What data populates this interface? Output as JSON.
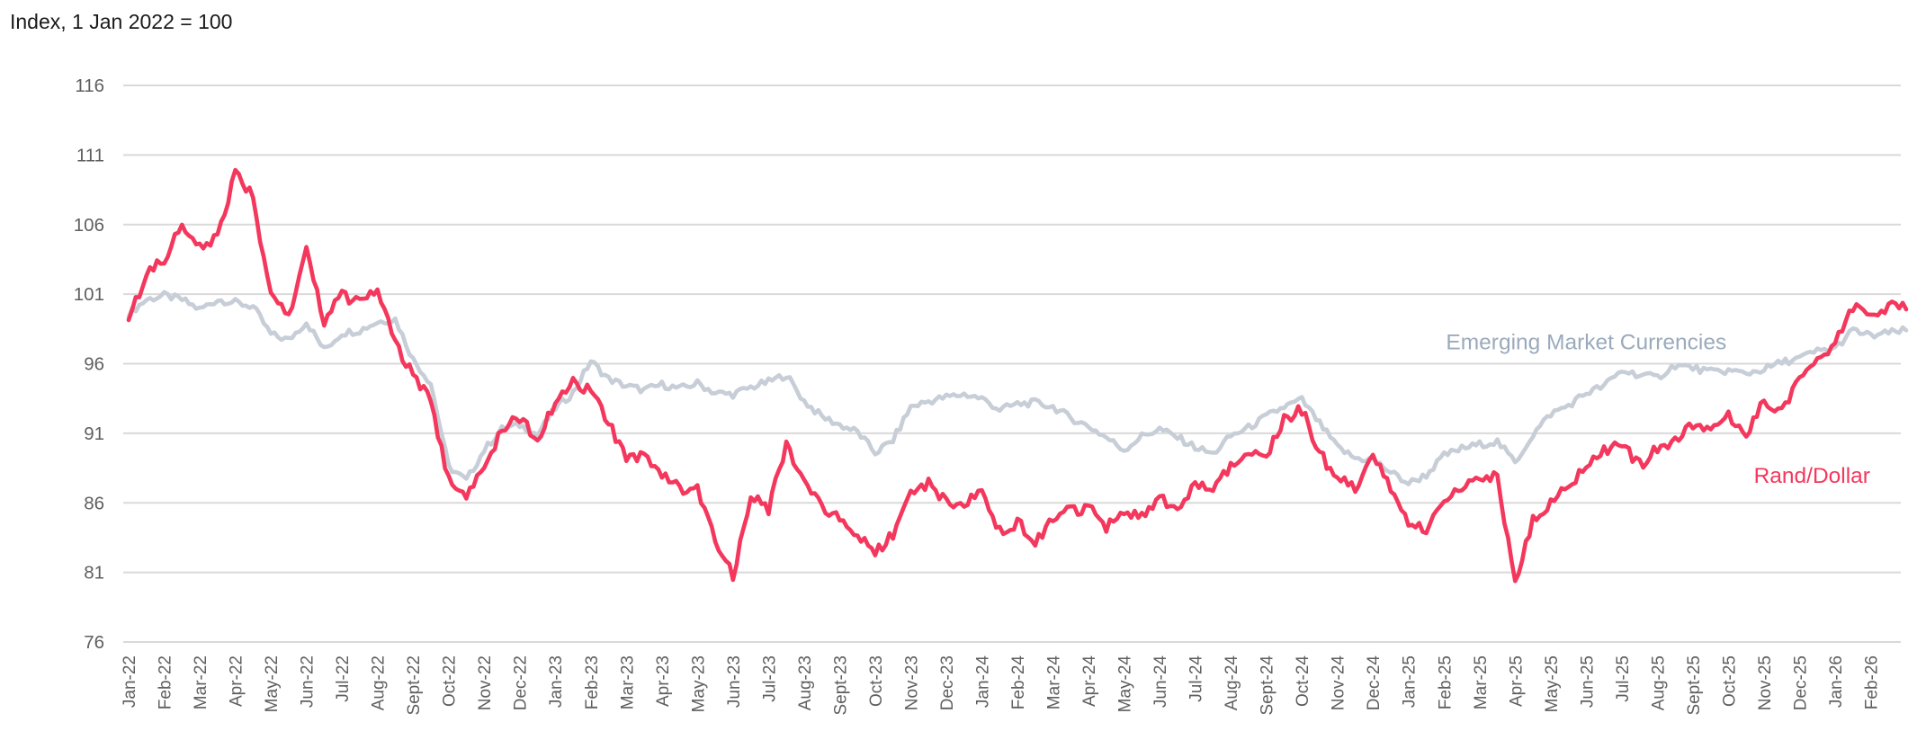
{
  "title": "Index, 1 Jan 2022 = 100",
  "chart_data": {
    "type": "line",
    "title": "Index, 1 Jan 2022 = 100",
    "grid": "horizontal",
    "ylim": [
      76,
      116
    ],
    "y_ticks": [
      76,
      81,
      86,
      91,
      96,
      101,
      106,
      111,
      116
    ],
    "points_per_month": 2,
    "x_tick_labels": [
      "Jan-22",
      "Feb-22",
      "Mar-22",
      "Apr-22",
      "May-22",
      "Jun-22",
      "Jul-22",
      "Aug-22",
      "Sept-22",
      "Oct-22",
      "Nov-22",
      "Dec-22",
      "Jan-23",
      "Feb-23",
      "Mar-23",
      "Apr-23",
      "May-23",
      "Jun-23",
      "Jul-23",
      "Aug-23",
      "Sept-23",
      "Oct-23",
      "Nov-23",
      "Dec-23",
      "Jan-24",
      "Feb-24",
      "Mar-24",
      "Apr-24",
      "May-24",
      "Jun-24",
      "Jul-24",
      "Aug-24",
      "Sept-24",
      "Oct-24",
      "Nov-24",
      "Dec-24",
      "Jan-25",
      "Feb-25",
      "Mar-25",
      "Apr-25",
      "May-25",
      "Jun-25",
      "Jul-25",
      "Aug-25",
      "Sept-25",
      "Oct-25",
      "Nov-25",
      "Dec-25",
      "Jan-26",
      "Feb-26"
    ],
    "series": [
      {
        "id": "emerging-market-currencies",
        "name": "Emerging Market Currencies",
        "color": "#C7CED7",
        "values": [
          99.6,
          100.6,
          100.9,
          100.6,
          99.9,
          100.6,
          100.4,
          100.1,
          98.1,
          97.7,
          99.0,
          97.0,
          98.2,
          98.4,
          99.0,
          99.2,
          96.3,
          94.6,
          88.6,
          87.6,
          89.8,
          91.3,
          91.6,
          90.9,
          92.8,
          93.9,
          96.2,
          94.9,
          94.4,
          94.1,
          94.5,
          94.2,
          94.6,
          93.9,
          93.8,
          94.3,
          94.7,
          95.2,
          93.3,
          92.2,
          91.6,
          91.1,
          89.6,
          90.5,
          92.9,
          93.3,
          93.6,
          93.8,
          93.5,
          92.7,
          93.1,
          93.2,
          92.9,
          92.1,
          91.5,
          90.7,
          89.8,
          90.8,
          91.3,
          90.7,
          90.0,
          89.5,
          90.8,
          91.4,
          92.2,
          92.9,
          93.4,
          91.7,
          90.0,
          89.2,
          89.1,
          88.2,
          87.4,
          88.0,
          89.4,
          89.9,
          90.2,
          90.4,
          88.9,
          90.9,
          92.4,
          93.0,
          93.9,
          94.4,
          95.5,
          95.2,
          95.0,
          95.9,
          95.7,
          95.4,
          95.5,
          95.3,
          95.6,
          96.1,
          96.4,
          96.9,
          97.1,
          98.4,
          98.0,
          98.2,
          98.4
        ]
      },
      {
        "id": "rand-dollar",
        "name": "Rand/Dollar",
        "color": "#F4375C",
        "values": [
          99.5,
          102.3,
          103.6,
          106.0,
          104.3,
          105.2,
          109.6,
          107.9,
          100.9,
          99.3,
          104.2,
          99.0,
          100.9,
          100.4,
          101.4,
          97.3,
          95.3,
          93.2,
          87.7,
          86.4,
          88.5,
          91.3,
          92.2,
          90.5,
          93.1,
          94.6,
          94.1,
          91.7,
          89.2,
          89.4,
          88.2,
          87.1,
          86.9,
          83.2,
          80.7,
          86.5,
          85.6,
          90.1,
          87.8,
          85.6,
          85.1,
          83.7,
          82.4,
          83.8,
          86.9,
          87.4,
          86.1,
          85.9,
          87.1,
          83.9,
          84.6,
          83.2,
          84.9,
          85.4,
          85.7,
          84.3,
          85.3,
          85.0,
          86.3,
          85.3,
          87.6,
          86.9,
          88.8,
          89.9,
          89.4,
          92.0,
          92.7,
          89.5,
          87.9,
          87.1,
          89.6,
          86.8,
          84.5,
          84.0,
          86.4,
          87.0,
          87.7,
          87.9,
          80.4,
          84.8,
          86.0,
          87.1,
          88.9,
          89.8,
          90.3,
          88.7,
          89.9,
          90.4,
          91.6,
          91.1,
          92.4,
          91.0,
          93.4,
          92.5,
          95.1,
          96.3,
          97.5,
          100.2,
          99.4,
          100.2,
          99.9
        ]
      }
    ],
    "annotations": [
      {
        "text": "Emerging Market Currencies",
        "month": 41.0,
        "value": 97.55,
        "color": "#9AAABC"
      },
      {
        "text": "Rand/Dollar",
        "month": 47.35,
        "value": 87.95,
        "color": "#F4375C"
      }
    ],
    "axis_style": {
      "tick_label_color": "#5f5f5f",
      "gridline_color": "#d9d9d9"
    }
  }
}
